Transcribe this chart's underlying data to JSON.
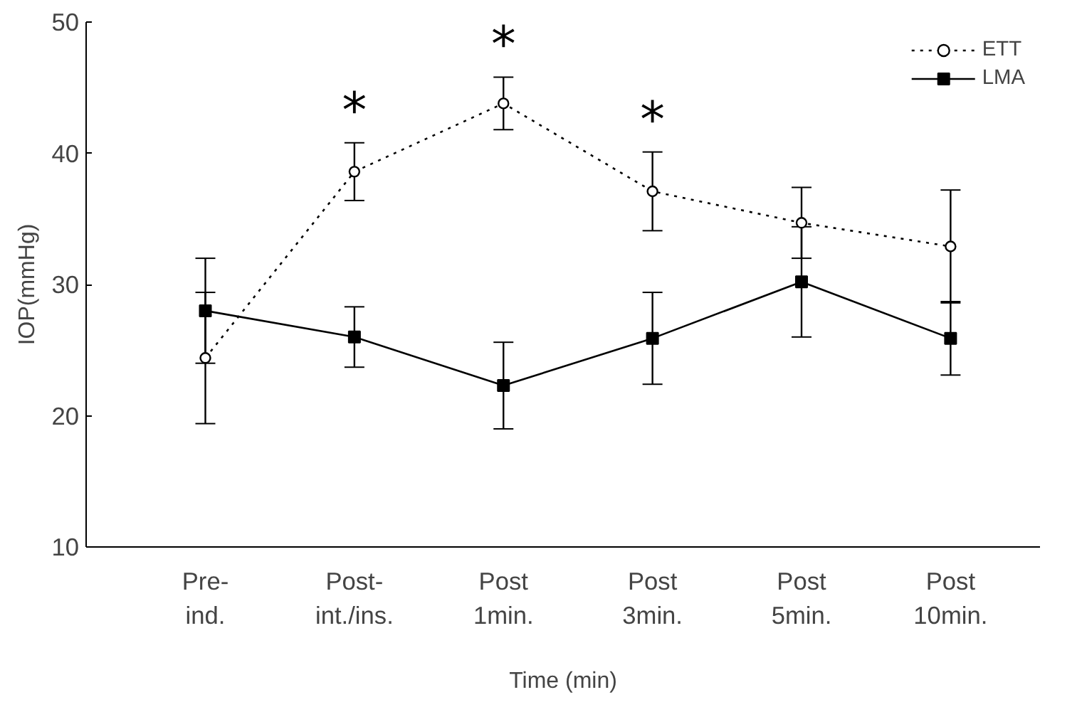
{
  "chart_data": {
    "type": "line",
    "xlabel": "Time (min)",
    "ylabel": "IOP(mmHg)",
    "categories": [
      "Pre-\nind.",
      "Post-\nint./ins.",
      "Post\n1min.",
      "Post\n3min.",
      "Post\n5min.",
      "Post\n10min."
    ],
    "ylim": [
      10,
      50
    ],
    "yticks": [
      10,
      20,
      30,
      40,
      50
    ],
    "grid": false,
    "legend": "top right",
    "series": [
      {
        "name": "ETT",
        "color": "#000000",
        "marker": "circle",
        "line_style": "dotted",
        "values": [
          24.4,
          38.6,
          43.8,
          37.1,
          34.7,
          32.9
        ],
        "errors": [
          5,
          2.2,
          2,
          3,
          2.7,
          4.3
        ]
      },
      {
        "name": "LMA",
        "color": "#000000",
        "marker": "square",
        "line_style": "solid",
        "values": [
          28.0,
          26.0,
          22.3,
          25.9,
          30.2,
          25.9
        ],
        "errors": [
          4,
          2.3,
          3.3,
          3.5,
          4.2,
          2.8
        ]
      }
    ],
    "annotations": [
      "*",
      "*",
      "*"
    ]
  }
}
